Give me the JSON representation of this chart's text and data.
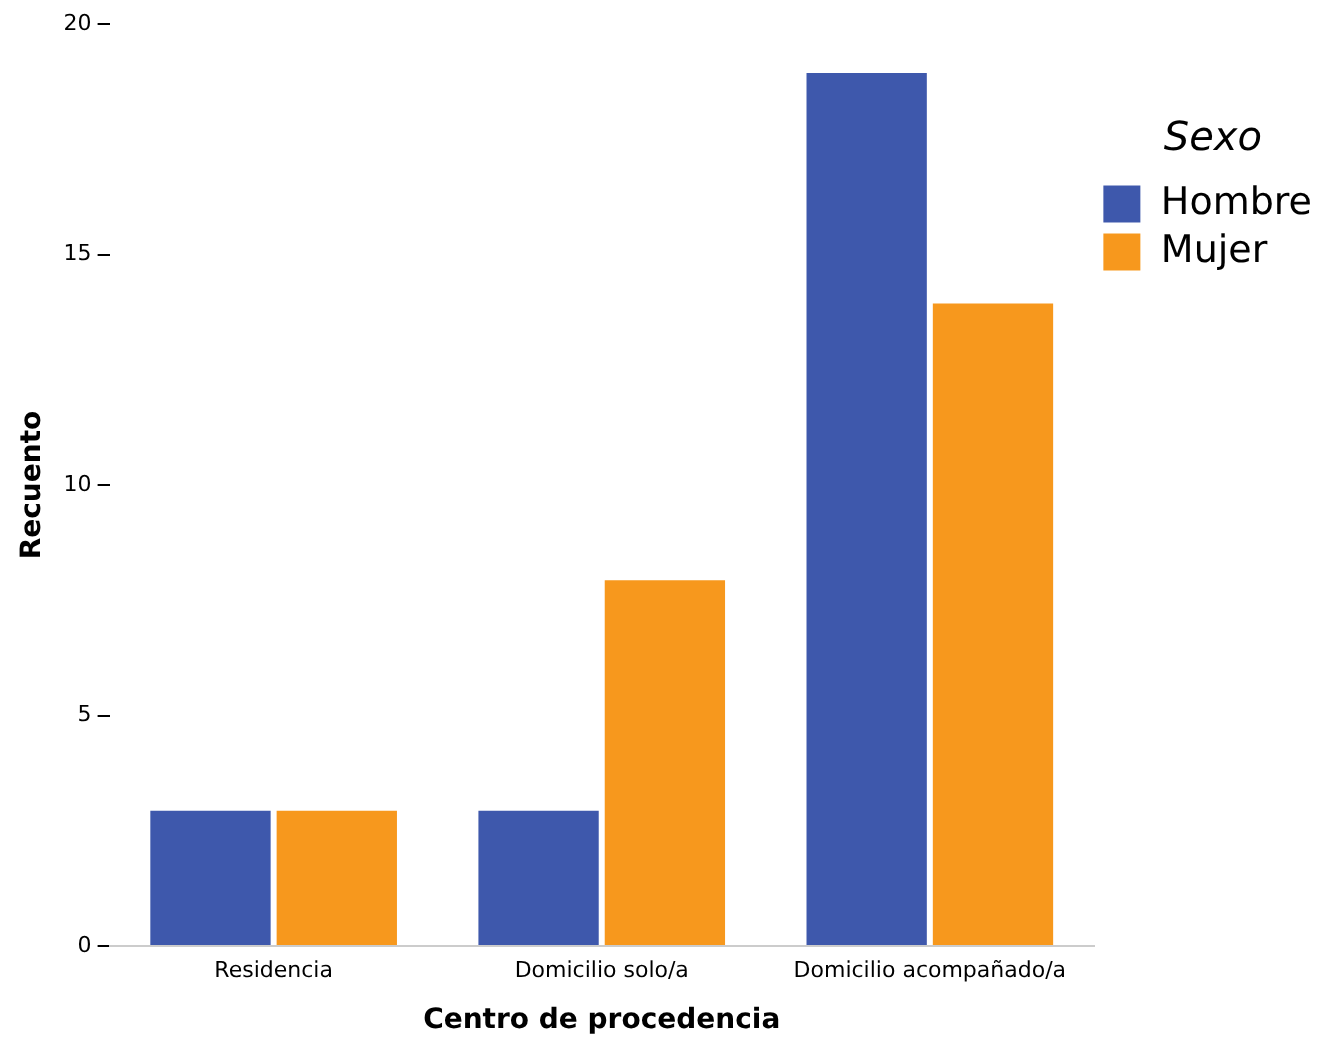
{
  "chart_data": {
    "type": "bar",
    "xlabel": "Centro de procedencia",
    "ylabel": "Recuento",
    "legend_title": "Sexo",
    "categories": [
      "Residencia",
      "Domicilio solo/a",
      "Domicilio acompañado/a"
    ],
    "series": [
      {
        "name": "Hombre",
        "color": "#3e58ac",
        "values": [
          3,
          3,
          19
        ]
      },
      {
        "name": "Mujer",
        "color": "#f7981d",
        "values": [
          3,
          8,
          14
        ]
      }
    ],
    "ylim": [
      0,
      20
    ],
    "yticks": [
      0,
      5,
      10,
      15,
      20
    ],
    "grid": false,
    "legend": "right"
  }
}
